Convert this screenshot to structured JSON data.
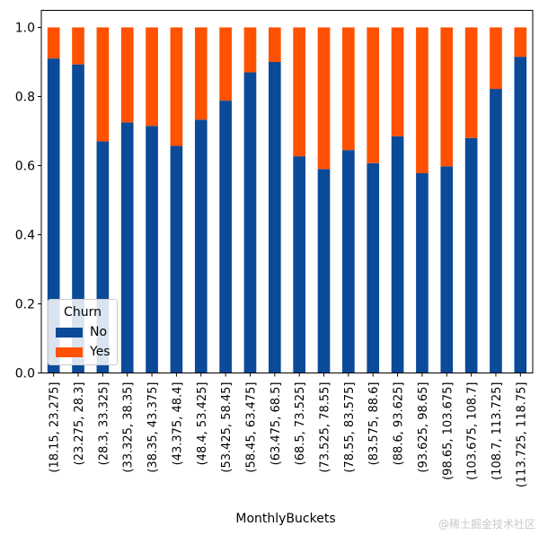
{
  "chart_data": {
    "type": "bar",
    "stacked": true,
    "title": "",
    "xlabel": "MonthlyBuckets",
    "ylabel": "",
    "ylim": [
      0,
      1.05
    ],
    "yticks": [
      "0.0",
      "0.2",
      "0.4",
      "0.6",
      "0.8",
      "1.0"
    ],
    "categories": [
      "(18.15, 23.275]",
      "(23.275, 28.3]",
      "(28.3, 33.325]",
      "(33.325, 38.35]",
      "(38.35, 43.375]",
      "(43.375, 48.4]",
      "(48.4, 53.425]",
      "(53.425, 58.45]",
      "(58.45, 63.475]",
      "(63.475, 68.5]",
      "(68.5, 73.525]",
      "(73.525, 78.55]",
      "(78.55, 83.575]",
      "(83.575, 88.6]",
      "(88.6, 93.625]",
      "(93.625, 98.65]",
      "(98.65, 103.675]",
      "(103.675, 108.7]",
      "(108.7, 113.725]",
      "(113.725, 118.75]"
    ],
    "series": [
      {
        "name": "No",
        "color": "#0b4a99",
        "values": [
          0.91,
          0.893,
          0.67,
          0.725,
          0.715,
          0.657,
          0.733,
          0.788,
          0.87,
          0.9,
          0.627,
          0.59,
          0.645,
          0.607,
          0.685,
          0.578,
          0.598,
          0.68,
          0.822,
          0.915
        ]
      },
      {
        "name": "Yes",
        "color": "#ff5100",
        "values": [
          0.09,
          0.107,
          0.33,
          0.275,
          0.285,
          0.343,
          0.267,
          0.212,
          0.13,
          0.1,
          0.373,
          0.41,
          0.355,
          0.393,
          0.315,
          0.422,
          0.402,
          0.32,
          0.178,
          0.085
        ]
      }
    ],
    "legend": {
      "title": "Churn",
      "position": "lower-left"
    }
  },
  "watermark": "@稀土掘金技术社区"
}
